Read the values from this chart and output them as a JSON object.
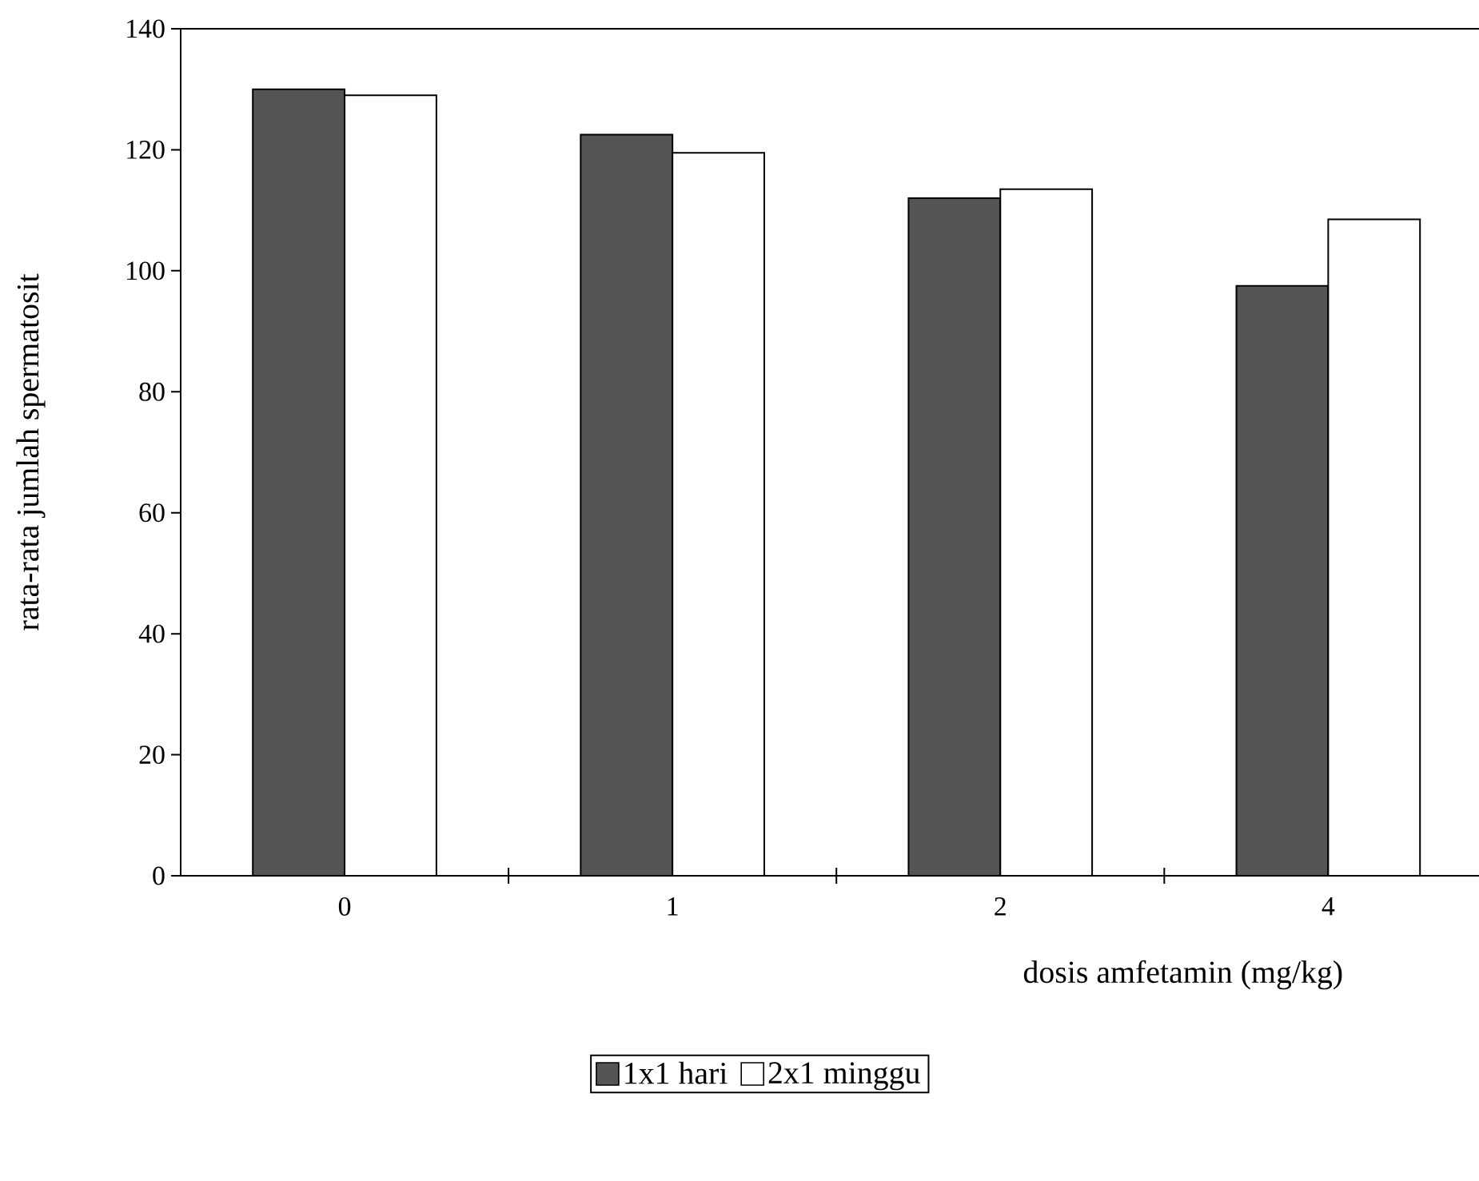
{
  "chart_data": {
    "type": "bar",
    "xlabel": "dosis amfetamin (mg/kg)",
    "ylabel": "rata-rata jumlah spermatosit",
    "categories": [
      "0",
      "1",
      "2",
      "4"
    ],
    "series": [
      {
        "name": "1x1 hari",
        "color": "#555555",
        "values": [
          130,
          122.5,
          112,
          97.5
        ]
      },
      {
        "name": "2x1 minggu",
        "color": "#ffffff",
        "values": [
          129,
          119.5,
          113.5,
          108.5
        ]
      }
    ],
    "ylim": [
      0,
      140
    ],
    "yticks": [
      0,
      20,
      40,
      60,
      80,
      100,
      120,
      140
    ],
    "grid": false,
    "legend": "bottom"
  }
}
